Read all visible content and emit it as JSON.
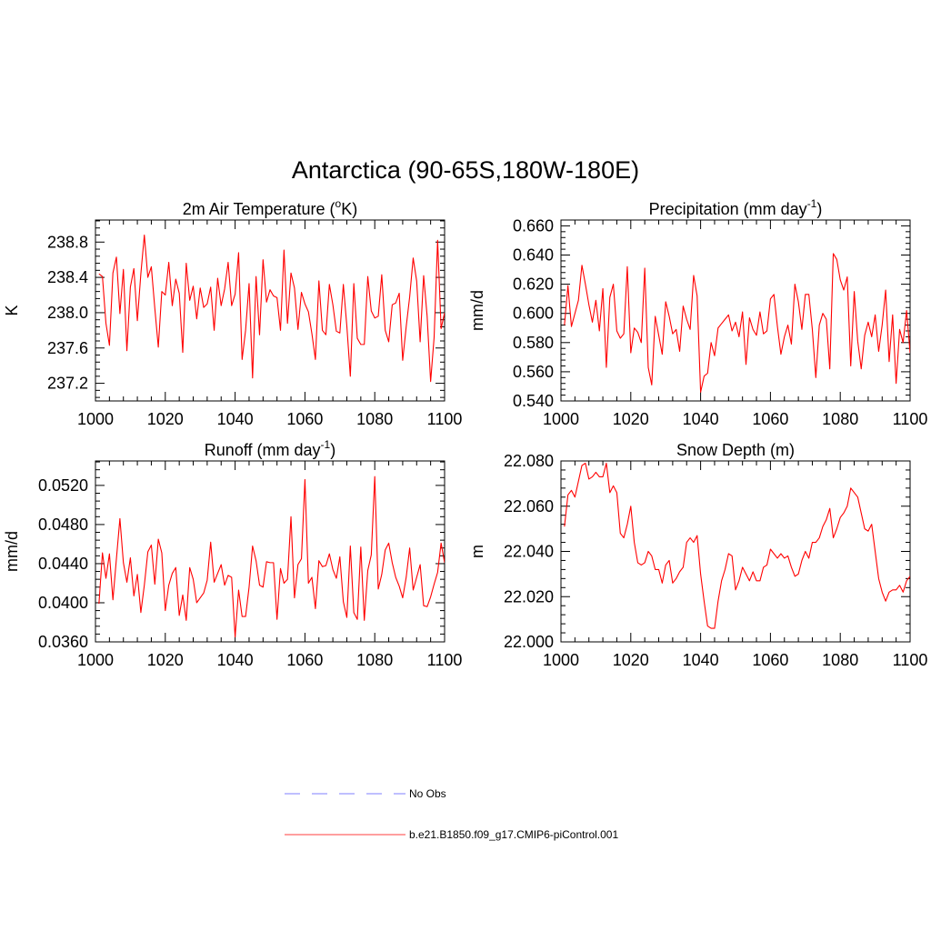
{
  "figure_title": "Antarctica (90-65S,180W-180E)",
  "legend": [
    {
      "label": "No Obs",
      "color": "#9999ff",
      "dash": true
    },
    {
      "label": "b.e21.B1850.f09_g17.CMIP6-piControl.001",
      "color": "#ff6666",
      "dash": false
    }
  ],
  "line_color": "#ff0000",
  "chart_data": [
    {
      "id": "temp",
      "type": "line",
      "title": {
        "pre": "2m Air Temperature (",
        "sup": "o",
        "post": "K)"
      },
      "ylabel": "K",
      "xlabel": "",
      "xlim": [
        1000,
        1100
      ],
      "ylim": [
        237.0,
        239.05
      ],
      "xticks": [
        1000,
        1020,
        1040,
        1060,
        1080,
        1100
      ],
      "yticks": [
        237.2,
        237.6,
        238.0,
        238.4,
        238.8
      ],
      "ytick_labels": [
        "237.2",
        "237.6",
        "238.0",
        "238.4",
        "238.8"
      ],
      "x_start": 1001,
      "series": [
        {
          "name": "b.e21.B1850.f09_g17.CMIP6-piControl.001",
          "values": [
            238.44,
            238.41,
            237.88,
            237.63,
            238.45,
            238.63,
            237.99,
            238.49,
            237.57,
            238.29,
            238.5,
            237.91,
            238.44,
            238.88,
            238.4,
            238.52,
            238.05,
            237.61,
            238.24,
            238.2,
            238.57,
            238.08,
            238.38,
            238.22,
            237.55,
            238.56,
            238.14,
            238.3,
            237.93,
            238.28,
            238.06,
            238.1,
            238.29,
            237.8,
            238.39,
            238.08,
            238.27,
            238.57,
            238.08,
            238.21,
            238.68,
            237.47,
            237.8,
            238.33,
            237.26,
            238.41,
            237.75,
            238.6,
            238.12,
            238.26,
            238.19,
            238.17,
            237.8,
            238.71,
            237.88,
            238.45,
            238.28,
            237.81,
            238.23,
            238.1,
            238.01,
            237.76,
            237.47,
            238.36,
            237.8,
            237.75,
            238.32,
            238.09,
            237.79,
            237.77,
            238.32,
            237.85,
            237.28,
            238.33,
            237.71,
            237.64,
            237.64,
            238.41,
            238.02,
            237.94,
            237.96,
            238.43,
            237.8,
            237.67,
            238.09,
            238.11,
            238.22,
            237.46,
            237.84,
            238.18,
            238.62,
            238.36,
            237.67,
            238.42,
            237.96,
            237.22,
            237.72,
            238.82,
            237.82,
            238.0
          ]
        }
      ]
    },
    {
      "id": "precip",
      "type": "line",
      "title": {
        "pre": "Precipitation (mm day",
        "sup": "-1",
        "post": ")"
      },
      "ylabel": "mm/d",
      "xlabel": "",
      "xlim": [
        1000,
        1100
      ],
      "ylim": [
        0.54,
        0.664
      ],
      "xticks": [
        1000,
        1020,
        1040,
        1060,
        1080,
        1100
      ],
      "yticks": [
        0.54,
        0.56,
        0.58,
        0.6,
        0.62,
        0.64,
        0.66
      ],
      "ytick_labels": [
        "0.540",
        "0.560",
        "0.580",
        "0.600",
        "0.620",
        "0.640",
        "0.660"
      ],
      "x_start": 1001,
      "series": [
        {
          "name": "b.e21.B1850.f09_g17.CMIP6-piControl.001",
          "values": [
            0.592,
            0.619,
            0.591,
            0.6,
            0.609,
            0.633,
            0.62,
            0.606,
            0.594,
            0.609,
            0.588,
            0.617,
            0.563,
            0.611,
            0.62,
            0.588,
            0.583,
            0.586,
            0.632,
            0.573,
            0.59,
            0.587,
            0.58,
            0.631,
            0.563,
            0.551,
            0.598,
            0.585,
            0.572,
            0.608,
            0.598,
            0.586,
            0.589,
            0.574,
            0.605,
            0.596,
            0.589,
            0.626,
            0.612,
            0.546,
            0.557,
            0.559,
            0.58,
            0.571,
            0.59,
            0.593,
            0.596,
            0.599,
            0.588,
            0.594,
            0.584,
            0.601,
            0.565,
            0.597,
            0.589,
            0.585,
            0.601,
            0.586,
            0.588,
            0.61,
            0.613,
            0.591,
            0.572,
            0.584,
            0.592,
            0.579,
            0.62,
            0.608,
            0.589,
            0.613,
            0.613,
            0.589,
            0.556,
            0.592,
            0.6,
            0.596,
            0.562,
            0.641,
            0.637,
            0.623,
            0.616,
            0.625,
            0.564,
            0.615,
            0.581,
            0.562,
            0.585,
            0.594,
            0.584,
            0.599,
            0.574,
            0.592,
            0.616,
            0.567,
            0.599,
            0.552,
            0.589,
            0.58,
            0.602,
            0.573
          ]
        }
      ]
    },
    {
      "id": "runoff",
      "type": "line",
      "title": {
        "pre": "Runoff (mm day",
        "sup": "-1",
        "post": ")"
      },
      "ylabel": "mm/d",
      "xlabel": "",
      "xlim": [
        1000,
        1100
      ],
      "ylim": [
        0.036,
        0.0545
      ],
      "xticks": [
        1000,
        1020,
        1040,
        1060,
        1080,
        1100
      ],
      "yticks": [
        0.036,
        0.04,
        0.044,
        0.048,
        0.052
      ],
      "ytick_labels": [
        "0.0360",
        "0.0400",
        "0.0440",
        "0.0480",
        "0.0520"
      ],
      "x_start": 1001,
      "series": [
        {
          "name": "b.e21.B1850.f09_g17.CMIP6-piControl.001",
          "values": [
            0.0399,
            0.0451,
            0.0425,
            0.045,
            0.0403,
            0.0445,
            0.0486,
            0.0441,
            0.0421,
            0.0446,
            0.0407,
            0.0429,
            0.039,
            0.0418,
            0.0452,
            0.0459,
            0.0419,
            0.0465,
            0.0451,
            0.0392,
            0.0418,
            0.043,
            0.0436,
            0.0387,
            0.0408,
            0.0382,
            0.0436,
            0.0424,
            0.04,
            0.0405,
            0.041,
            0.0423,
            0.0462,
            0.0421,
            0.043,
            0.0439,
            0.0418,
            0.0428,
            0.0426,
            0.0365,
            0.0413,
            0.0386,
            0.0386,
            0.0416,
            0.0458,
            0.0443,
            0.0418,
            0.0416,
            0.0442,
            0.0441,
            0.0441,
            0.0383,
            0.0435,
            0.042,
            0.0424,
            0.0488,
            0.0405,
            0.0439,
            0.0445,
            0.0526,
            0.042,
            0.0426,
            0.0394,
            0.0443,
            0.0437,
            0.0438,
            0.045,
            0.0434,
            0.0425,
            0.0447,
            0.0401,
            0.0385,
            0.0458,
            0.039,
            0.0383,
            0.0457,
            0.0382,
            0.0433,
            0.0449,
            0.0529,
            0.0414,
            0.0429,
            0.0454,
            0.0461,
            0.0441,
            0.0426,
            0.0417,
            0.0405,
            0.0426,
            0.0456,
            0.0413,
            0.0426,
            0.0439,
            0.0397,
            0.0396,
            0.0406,
            0.0419,
            0.0431,
            0.0461,
            0.0441
          ]
        }
      ]
    },
    {
      "id": "snow",
      "type": "line",
      "title": {
        "pre": "Snow Depth (m)",
        "sup": "",
        "post": ""
      },
      "ylabel": "m",
      "xlabel": "",
      "xlim": [
        1000,
        1100
      ],
      "ylim": [
        22.0,
        22.08
      ],
      "xticks": [
        1000,
        1020,
        1040,
        1060,
        1080,
        1100
      ],
      "yticks": [
        22.0,
        22.02,
        22.04,
        22.06,
        22.08
      ],
      "ytick_labels": [
        "22.000",
        "22.020",
        "22.040",
        "22.060",
        "22.080"
      ],
      "x_start": 1001,
      "series": [
        {
          "name": "b.e21.B1850.f09_g17.CMIP6-piControl.001",
          "values": [
            22.051,
            22.065,
            22.067,
            22.064,
            22.071,
            22.078,
            22.079,
            22.072,
            22.073,
            22.075,
            22.073,
            22.073,
            22.079,
            22.066,
            22.069,
            22.066,
            22.048,
            22.046,
            22.052,
            22.06,
            22.044,
            22.035,
            22.034,
            22.035,
            22.04,
            22.038,
            22.032,
            22.032,
            22.026,
            22.034,
            22.036,
            22.026,
            22.028,
            22.031,
            22.033,
            22.044,
            22.046,
            22.044,
            22.047,
            22.03,
            22.018,
            22.007,
            22.006,
            22.006,
            22.018,
            22.027,
            22.032,
            22.039,
            22.038,
            22.023,
            22.027,
            22.033,
            22.03,
            22.027,
            22.031,
            22.027,
            22.027,
            22.033,
            22.034,
            22.041,
            22.039,
            22.037,
            22.039,
            22.037,
            22.038,
            22.033,
            22.029,
            22.03,
            22.036,
            22.04,
            22.037,
            22.044,
            22.044,
            22.046,
            22.051,
            22.054,
            22.059,
            22.046,
            22.05,
            22.055,
            22.057,
            22.06,
            22.068,
            22.066,
            22.064,
            22.057,
            22.05,
            22.049,
            22.052,
            22.04,
            22.028,
            22.022,
            22.018,
            22.022,
            22.023,
            22.023,
            22.025,
            22.022,
            22.027,
            22.029
          ]
        }
      ]
    }
  ]
}
